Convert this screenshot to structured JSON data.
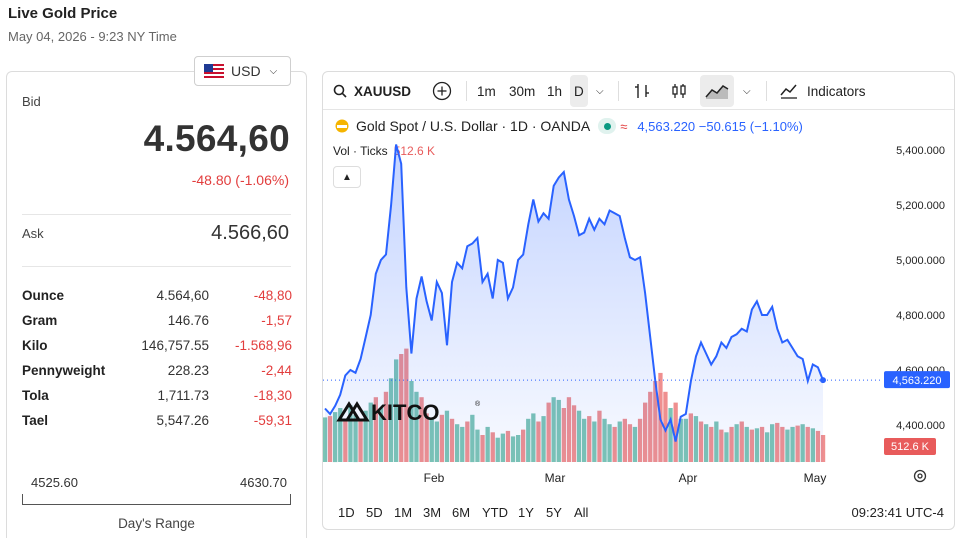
{
  "header": {
    "title": "Live Gold Price",
    "date": "May 04, 2026 - 9:23 NY Time"
  },
  "currency": {
    "code": "USD"
  },
  "quote": {
    "bid_label": "Bid",
    "bid": "4.564,60",
    "change": "-48.80 (-1.06%)",
    "ask_label": "Ask",
    "ask": "4.566,60"
  },
  "units": [
    {
      "name": "Ounce",
      "price": "4.564,60",
      "change": "-48,80"
    },
    {
      "name": "Gram",
      "price": "146.76",
      "change": "-1,57"
    },
    {
      "name": "Kilo",
      "price": "146,757.55",
      "change": "-1.568,96"
    },
    {
      "name": "Pennyweight",
      "price": "228.23",
      "change": "-2,44"
    },
    {
      "name": "Tola",
      "price": "1,711.73",
      "change": "-18,30"
    },
    {
      "name": "Tael",
      "price": "5,547.26",
      "change": "-59,31"
    }
  ],
  "range": {
    "low": "4525.60",
    "high": "4630.70",
    "label": "Day's Range"
  },
  "toolbar": {
    "symbol": "XAUUSD",
    "intervals": [
      "1m",
      "30m",
      "1h",
      "D"
    ],
    "indicators": "Indicators"
  },
  "legend": {
    "title": "Gold Spot / U.S. Dollar · 1D · OANDA",
    "values": "4,563.220 −50.615 (−1.10%)",
    "vol_label": "Vol · Ticks",
    "vol_value": "512.6 K"
  },
  "timeframes": [
    "1D",
    "5D",
    "1M",
    "3M",
    "6M",
    "YTD",
    "1Y",
    "5Y",
    "All"
  ],
  "clock": "09:23:41 UTC-4",
  "watermark": "KITCO",
  "colors": {
    "line": "#2962ff",
    "down": "#e23d3d",
    "vol_up": "#7cc4b4",
    "vol_down": "#ef8f8f"
  },
  "chart_data": {
    "type": "area",
    "y_ticks": [
      "5,400.000",
      "5,200.000",
      "5,000.000",
      "4,800.000",
      "4,600.000",
      "4,400.000"
    ],
    "ylim": [
      4300,
      5450
    ],
    "x_ticks": [
      "Feb",
      "Mar",
      "Apr",
      "May"
    ],
    "last_price_label": "4,563.220",
    "last_price": 4563.22,
    "volume_label": "512.6 K",
    "series": [
      {
        "values": [
          4460,
          4440,
          4470,
          4510,
          4580,
          4600,
          4590,
          4640,
          4720,
          4800,
          4950,
          5000,
          5020,
          5200,
          5420,
          5350,
          4900,
          4660,
          4860,
          4940,
          4850,
          4780,
          4920,
          4880,
          4690,
          4920,
          4990,
          4970,
          5050,
          5060,
          5080,
          4920,
          4950,
          4860,
          5000,
          4990,
          4860,
          4900,
          5000,
          5020,
          5130,
          5220,
          5140,
          5170,
          5150,
          5270,
          5300,
          5320,
          5220,
          5160,
          5090,
          5100,
          5150,
          5110,
          5150,
          5130,
          5180,
          5170,
          5160,
          5080,
          5010,
          5000,
          5010,
          4880,
          4720,
          4560,
          4420,
          4380,
          4420,
          4340,
          4430,
          4440,
          4560,
          4650,
          4700,
          4660,
          4620,
          4650,
          4700,
          4680,
          4720,
          4730,
          4750,
          4740,
          4820,
          4850,
          4800,
          4800,
          4830,
          4750,
          4700,
          4710,
          4680,
          4650,
          4640,
          4560,
          4620,
          4610,
          4563
        ]
      },
      {
        "name": "Vol",
        "values": [
          165,
          170,
          185,
          200,
          160,
          210,
          175,
          155,
          190,
          220,
          240,
          200,
          260,
          310,
          380,
          400,
          420,
          300,
          260,
          240,
          180,
          160,
          150,
          175,
          190,
          160,
          140,
          130,
          150,
          175,
          120,
          100,
          130,
          110,
          90,
          105,
          115,
          95,
          100,
          120,
          160,
          180,
          150,
          170,
          220,
          240,
          230,
          200,
          240,
          210,
          190,
          160,
          170,
          150,
          190,
          160,
          140,
          130,
          150,
          160,
          140,
          130,
          160,
          220,
          260,
          300,
          330,
          260,
          200,
          220,
          160,
          160,
          180,
          170,
          150,
          140,
          130,
          150,
          120,
          110,
          130,
          140,
          150,
          130,
          120,
          125,
          130,
          110,
          140,
          145,
          130,
          120,
          130,
          135,
          140,
          130,
          125,
          115,
          100
        ],
        "down": [
          0,
          1,
          0,
          0,
          1,
          0,
          0,
          1,
          0,
          0,
          1,
          0,
          1,
          0,
          0,
          1,
          1,
          0,
          0,
          1,
          1,
          0,
          0,
          1,
          0,
          1,
          0,
          0,
          1,
          0,
          0,
          1,
          0,
          1,
          0,
          0,
          1,
          0,
          0,
          1,
          0,
          0,
          1,
          0,
          1,
          0,
          0,
          1,
          1,
          1,
          0,
          0,
          1,
          0,
          1,
          0,
          0,
          1,
          0,
          1,
          1,
          0,
          1,
          1,
          1,
          1,
          1,
          1,
          0,
          1,
          0,
          0,
          1,
          0,
          1,
          0,
          1,
          0,
          1,
          0,
          1,
          0,
          1,
          0,
          1,
          0,
          1,
          0,
          0,
          1,
          1,
          0,
          0,
          1,
          0,
          1,
          0,
          1,
          1
        ]
      }
    ]
  }
}
